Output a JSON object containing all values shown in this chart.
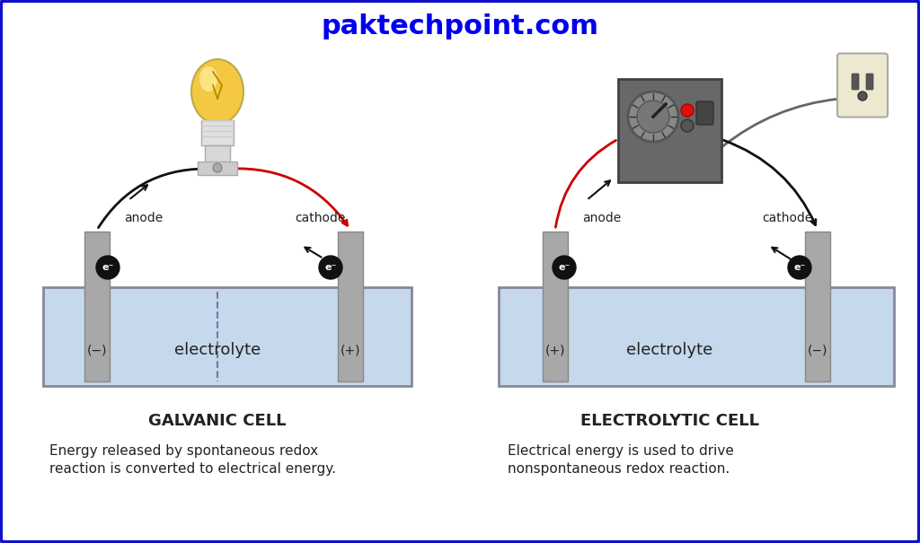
{
  "title": "paktechpoint.com",
  "title_color": "#0000EE",
  "bg_color": "#FFFFFF",
  "border_color": "#1111CC",
  "galvanic_label": "GALVANIC CELL",
  "galvanic_desc1": "Energy released by spontaneous redox",
  "galvanic_desc2": "reaction is converted to electrical energy.",
  "electrolytic_label": "ELECTROLYTIC CELL",
  "electrolytic_desc1": "Electrical energy is used to drive",
  "electrolytic_desc2": "nonspontaneous redox reaction.",
  "anode_label": "anode",
  "cathode_label": "cathode",
  "galvanic_anode_charge": "(−)",
  "galvanic_cathode_charge": "(+)",
  "electrolytic_anode_charge": "(+)",
  "electrolytic_cathode_charge": "(−)",
  "electrolyte_label": "electrolyte",
  "electrode_color": "#A8A8A8",
  "electrode_edge": "#888888",
  "solution_color": "#C5D8EC",
  "solution_edge": "#888899",
  "wire_black": "#111111",
  "wire_red": "#CC0000",
  "electron_bg": "#111111",
  "electron_text": "#FFFFFF",
  "dashed_color": "#7777AA",
  "text_color": "#222222",
  "label_fontsize": 10,
  "charge_fontsize": 10,
  "electrolyte_fontsize": 13,
  "title_fontsize": 22,
  "cell_title_fontsize": 13,
  "desc_fontsize": 11
}
